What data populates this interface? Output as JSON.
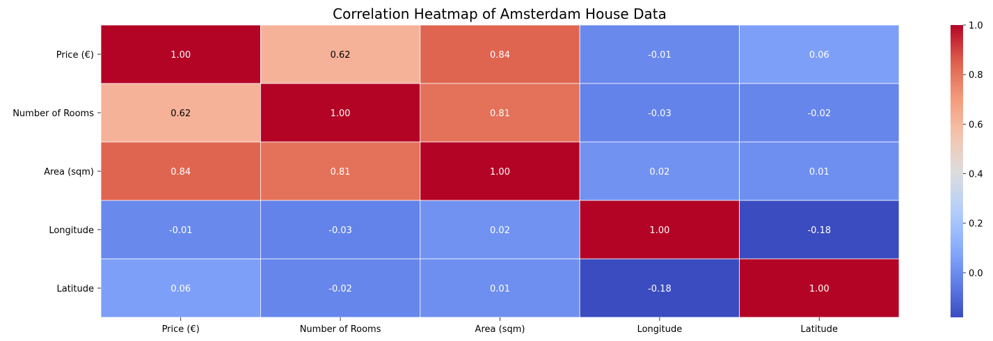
{
  "chart_data": {
    "type": "heatmap",
    "title": "Correlation Heatmap of Amsterdam House Data",
    "xlabel": "",
    "ylabel": "",
    "x_categories": [
      "Price (€)",
      "Number of Rooms",
      "Area (sqm)",
      "Longitude",
      "Latitude"
    ],
    "y_categories": [
      "Price (€)",
      "Number of Rooms",
      "Area (sqm)",
      "Longitude",
      "Latitude"
    ],
    "values": [
      [
        1.0,
        0.62,
        0.84,
        -0.01,
        0.06
      ],
      [
        0.62,
        1.0,
        0.81,
        -0.03,
        -0.02
      ],
      [
        0.84,
        0.81,
        1.0,
        0.02,
        0.01
      ],
      [
        -0.01,
        -0.03,
        0.02,
        1.0,
        -0.18
      ],
      [
        0.06,
        -0.02,
        0.01,
        -0.18,
        1.0
      ]
    ],
    "cell_labels": [
      [
        "1.00",
        "0.62",
        "0.84",
        "-0.01",
        "0.06"
      ],
      [
        "0.62",
        "1.00",
        "0.81",
        "-0.03",
        "-0.02"
      ],
      [
        "0.84",
        "0.81",
        "1.00",
        "0.02",
        "0.01"
      ],
      [
        "-0.01",
        "-0.03",
        "0.02",
        "1.00",
        "-0.18"
      ],
      [
        "0.06",
        "-0.02",
        "0.01",
        "-0.18",
        "1.00"
      ]
    ],
    "colormap": "coolwarm",
    "color_range": [
      -0.18,
      1.0
    ],
    "colorbar": {
      "ticks": [
        0.0,
        0.2,
        0.4,
        0.6,
        0.8,
        1.0
      ],
      "tick_labels": [
        "0.0",
        "0.2",
        "0.4",
        "0.6",
        "0.8",
        "1.0"
      ]
    },
    "grid_line_color": "#ffffff"
  }
}
